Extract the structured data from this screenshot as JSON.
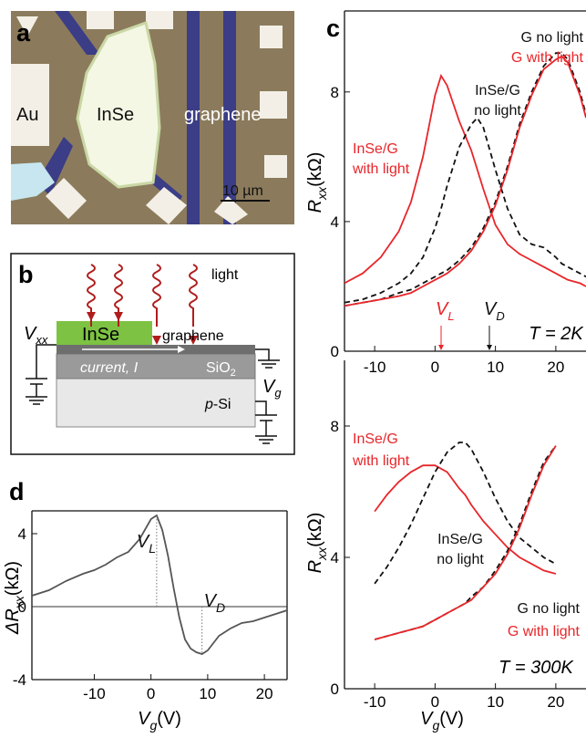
{
  "panel_a": {
    "label": "a",
    "au": "Au",
    "inse": "InSe",
    "graphene": "graphene",
    "scale": "10 µm"
  },
  "panel_b": {
    "label": "b",
    "light": "light",
    "inse": "InSe",
    "graphene": "graphene",
    "vxx": {
      "symbol": "V",
      "subscript": "xx"
    },
    "current": "current, I",
    "sio2": {
      "text": "SiO",
      "subscript": "2"
    },
    "vg": {
      "symbol": "V",
      "subscript": "g"
    },
    "psi": {
      "prefix": "p",
      "text": "-Si"
    }
  },
  "chart_data": [
    {
      "type": "line",
      "panel_label": "c",
      "y_label": {
        "symbol": "R",
        "subscript": "xx",
        "unit": "(kΩ)"
      },
      "xlim": [
        -15,
        25
      ],
      "ylim": [
        0,
        10.5
      ],
      "xticks": [
        -10,
        0,
        10,
        20
      ],
      "yticks": [
        0,
        4,
        8
      ],
      "x": [
        -15,
        -12,
        -9,
        -6,
        -4,
        -2,
        0,
        1,
        2,
        4,
        6,
        7,
        8,
        10,
        12,
        14,
        16,
        18,
        20,
        21,
        22,
        24,
        25
      ],
      "series": [
        {
          "name": [
            "InSe/G",
            "with light"
          ],
          "color": "#e8262a",
          "dash": false,
          "values": [
            2.1,
            2.4,
            2.9,
            3.7,
            4.6,
            6.0,
            7.9,
            8.5,
            8.2,
            7.1,
            6.2,
            5.6,
            5.0,
            3.9,
            3.3,
            3.0,
            2.8,
            2.6,
            2.4,
            2.3,
            2.2,
            2.1,
            2.0
          ]
        },
        {
          "name": [
            "InSe/G",
            "no light"
          ],
          "color": "#111111",
          "dash": true,
          "values": [
            1.5,
            1.6,
            1.8,
            2.1,
            2.4,
            2.9,
            3.8,
            4.4,
            5.1,
            6.3,
            7.0,
            7.2,
            6.9,
            5.6,
            4.4,
            3.6,
            3.3,
            3.2,
            2.9,
            2.7,
            2.6,
            2.4,
            2.3
          ]
        },
        {
          "name": [
            "G no light"
          ],
          "color": "#111111",
          "dash": true,
          "values": [
            1.4,
            1.5,
            1.6,
            1.8,
            1.9,
            2.1,
            2.3,
            2.4,
            2.5,
            2.8,
            3.2,
            3.5,
            3.8,
            4.6,
            5.7,
            7.0,
            8.0,
            8.8,
            9.2,
            9.2,
            9.0,
            8.0,
            7.3
          ]
        },
        {
          "name": [
            "G with light"
          ],
          "color": "#e8262a",
          "dash": false,
          "values": [
            1.4,
            1.5,
            1.6,
            1.7,
            1.8,
            2.0,
            2.2,
            2.3,
            2.4,
            2.7,
            3.1,
            3.4,
            3.7,
            4.5,
            5.6,
            6.9,
            7.9,
            8.7,
            9.0,
            9.1,
            8.9,
            7.9,
            7.2
          ]
        }
      ],
      "markers": [
        {
          "label": {
            "symbol": "V",
            "subscript": "L"
          },
          "x": 1,
          "color": "#e8262a"
        },
        {
          "label": {
            "symbol": "V",
            "subscript": "D"
          },
          "x": 9,
          "color": "#111111"
        }
      ],
      "annotation": "T = 2K"
    },
    {
      "type": "line",
      "y_label": {
        "symbol": "R",
        "subscript": "xx",
        "unit": "(kΩ)"
      },
      "x_label": {
        "symbol": "V",
        "subscript": "g",
        "unit": "(V)"
      },
      "xlim": [
        -15,
        25
      ],
      "ylim": [
        0,
        10
      ],
      "xticks": [
        -10,
        0,
        10,
        20
      ],
      "yticks": [
        0,
        4,
        8
      ],
      "x": [
        -10,
        -8,
        -6,
        -4,
        -2,
        0,
        2,
        4,
        5,
        6,
        8,
        10,
        12,
        14,
        16,
        18,
        20
      ],
      "series": [
        {
          "name": [
            "InSe/G",
            "with light"
          ],
          "color": "#e8262a",
          "dash": false,
          "values": [
            5.4,
            5.9,
            6.3,
            6.6,
            6.8,
            6.8,
            6.6,
            6.1,
            5.9,
            5.6,
            5.1,
            4.7,
            4.3,
            4.0,
            3.8,
            3.6,
            3.5
          ]
        },
        {
          "name": [
            "InSe/G",
            "no light"
          ],
          "color": "#111111",
          "dash": true,
          "values": [
            3.2,
            3.7,
            4.3,
            5.0,
            5.8,
            6.6,
            7.2,
            7.5,
            7.5,
            7.3,
            6.6,
            5.8,
            5.1,
            4.6,
            4.3,
            4.0,
            3.8
          ]
        },
        {
          "name": [
            "G no light"
          ],
          "color": "#111111",
          "dash": true,
          "values": [
            1.5,
            1.6,
            1.7,
            1.8,
            1.9,
            2.1,
            2.3,
            2.5,
            2.6,
            2.8,
            3.1,
            3.6,
            4.2,
            5.0,
            6.0,
            6.9,
            7.4
          ]
        },
        {
          "name": [
            "G with light"
          ],
          "color": "#e8262a",
          "dash": false,
          "values": [
            1.5,
            1.6,
            1.7,
            1.8,
            1.9,
            2.1,
            2.3,
            2.5,
            2.6,
            2.7,
            3.1,
            3.5,
            4.1,
            4.9,
            5.9,
            6.8,
            7.4
          ]
        }
      ],
      "annotation": "T = 300K"
    },
    {
      "type": "line",
      "panel_label": "d",
      "y_label": {
        "symbol": "ΔR",
        "subscript": "xx",
        "unit": "(kΩ)"
      },
      "x_label": {
        "symbol": "V",
        "subscript": "g",
        "unit": "(V)"
      },
      "xlim": [
        -21,
        24
      ],
      "ylim": [
        -4,
        5.25
      ],
      "xticks": [
        -10,
        0,
        10,
        20
      ],
      "yticks": [
        -4,
        0,
        4
      ],
      "zero_line": true,
      "x": [
        -21,
        -18,
        -15,
        -12,
        -10,
        -8,
        -6,
        -4,
        -2,
        0,
        1,
        2,
        3,
        4,
        5,
        6,
        7,
        8,
        9,
        10,
        12,
        14,
        16,
        18,
        20,
        22,
        24
      ],
      "series": [
        {
          "color": "#555555",
          "dash": false,
          "values": [
            0.6,
            0.9,
            1.4,
            1.8,
            2.0,
            2.3,
            2.7,
            3.0,
            3.7,
            4.8,
            5.0,
            4.2,
            2.8,
            1.0,
            -0.6,
            -1.8,
            -2.3,
            -2.5,
            -2.6,
            -2.4,
            -1.6,
            -1.2,
            -0.9,
            -0.8,
            -0.6,
            -0.4,
            -0.2
          ]
        }
      ],
      "markers": [
        {
          "label": {
            "symbol": "V",
            "subscript": "L"
          },
          "x": 1,
          "color": "#111111"
        },
        {
          "label": {
            "symbol": "V",
            "subscript": "D"
          },
          "x": 9,
          "color": "#111111"
        }
      ]
    }
  ]
}
